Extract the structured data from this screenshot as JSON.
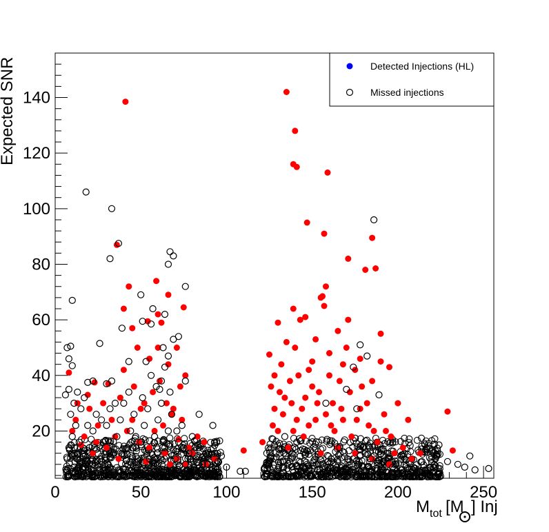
{
  "chart_data": {
    "type": "scatter",
    "title": "",
    "xlabel": "",
    "ylabel": "Expected SNR",
    "xlim": [
      0,
      256
    ],
    "ylim": [
      3,
      156
    ],
    "x_ticks": [
      0,
      50,
      100,
      150,
      200,
      250
    ],
    "y_ticks": [
      20,
      40,
      60,
      80,
      100,
      120,
      140
    ],
    "grid": false,
    "legend_placement": "top-right",
    "legend": [
      {
        "label": "Detected Injections (HL)",
        "marker": "filled-circle",
        "color": "#0000ff"
      },
      {
        "label": "Missed injections",
        "marker": "open-circle",
        "color": "#000000"
      }
    ],
    "series": [
      {
        "label_ref": "detected-red",
        "marker": "filled-circle",
        "color": "#ff0000",
        "points": [
          [
            41,
            138.5
          ],
          [
            135,
            142
          ],
          [
            140,
            128
          ],
          [
            139,
            116
          ],
          [
            141,
            115
          ],
          [
            159,
            113
          ],
          [
            147,
            95
          ],
          [
            157,
            91
          ],
          [
            36,
            87
          ],
          [
            185,
            89.5
          ],
          [
            187,
            78.5
          ],
          [
            171,
            82
          ],
          [
            43,
            72
          ],
          [
            59,
            74
          ],
          [
            158,
            72
          ],
          [
            156,
            68.5
          ],
          [
            155,
            68
          ],
          [
            40,
            64
          ],
          [
            75,
            64.5
          ],
          [
            60,
            62
          ],
          [
            66,
            69
          ],
          [
            181,
            78
          ],
          [
            139,
            64
          ],
          [
            143,
            60
          ],
          [
            130,
            59
          ],
          [
            157,
            65
          ],
          [
            146,
            61
          ],
          [
            165,
            56
          ],
          [
            171,
            60
          ],
          [
            190,
            55
          ],
          [
            62,
            59
          ],
          [
            54,
            59.5
          ],
          [
            45,
            57
          ],
          [
            60,
            50
          ],
          [
            71,
            50
          ],
          [
            66,
            44
          ],
          [
            55,
            46
          ],
          [
            40,
            42
          ],
          [
            48,
            50
          ],
          [
            31,
            37
          ],
          [
            23,
            37.5
          ],
          [
            8,
            41
          ],
          [
            19,
            33
          ],
          [
            76,
            40
          ],
          [
            73,
            36
          ],
          [
            170,
            50
          ],
          [
            178,
            46
          ],
          [
            190,
            45
          ],
          [
            195,
            43
          ],
          [
            125,
            47.5
          ],
          [
            132,
            44
          ],
          [
            128,
            40
          ],
          [
            137,
            38
          ],
          [
            142,
            40
          ],
          [
            150,
            36
          ],
          [
            160,
            40
          ],
          [
            168,
            44
          ],
          [
            185,
            38
          ],
          [
            175,
            42
          ],
          [
            200,
            30
          ],
          [
            206,
            24
          ],
          [
            229,
            27
          ],
          [
            232,
            13
          ],
          [
            121,
            16
          ],
          [
            110,
            13
          ],
          [
            83,
            18
          ],
          [
            87,
            16
          ],
          [
            10,
            20
          ],
          [
            25,
            22
          ],
          [
            35,
            18
          ],
          [
            45,
            24
          ],
          [
            50,
            28
          ],
          [
            58,
            20
          ],
          [
            63,
            22
          ],
          [
            68,
            26
          ],
          [
            72,
            17
          ],
          [
            78,
            14
          ],
          [
            15,
            15
          ],
          [
            30,
            14
          ],
          [
            128,
            28
          ],
          [
            134,
            32
          ],
          [
            141,
            24
          ],
          [
            148,
            22
          ],
          [
            153,
            30
          ],
          [
            158,
            26
          ],
          [
            163,
            20
          ],
          [
            168,
            24
          ],
          [
            173,
            18
          ],
          [
            178,
            28
          ],
          [
            183,
            22
          ],
          [
            188,
            16
          ],
          [
            193,
            20
          ],
          [
            198,
            12
          ],
          [
            203,
            14
          ],
          [
            208,
            10
          ],
          [
            213,
            12
          ],
          [
            130,
            20
          ],
          [
            136,
            14
          ],
          [
            145,
            18
          ],
          [
            155,
            12
          ],
          [
            165,
            14
          ],
          [
            175,
            12
          ],
          [
            185,
            10
          ],
          [
            195,
            8
          ],
          [
            126,
            36
          ],
          [
            131,
            34
          ],
          [
            138,
            30
          ],
          [
            144,
            28
          ],
          [
            152,
            24
          ],
          [
            162,
            30
          ],
          [
            172,
            34
          ],
          [
            182,
            30
          ],
          [
            192,
            26
          ],
          [
            127,
            22
          ],
          [
            133,
            26
          ],
          [
            139,
            20
          ],
          [
            146,
            32
          ],
          [
            154,
            34
          ],
          [
            161,
            22
          ],
          [
            167,
            28
          ],
          [
            176,
            24
          ],
          [
            186,
            20
          ],
          [
            196,
            18
          ],
          [
            140,
            50
          ],
          [
            150,
            45
          ],
          [
            160,
            48
          ],
          [
            166,
            38
          ],
          [
            179,
            36
          ],
          [
            135,
            52
          ],
          [
            152,
            53
          ],
          [
            148,
            42
          ],
          [
            20,
            28
          ],
          [
            28,
            30
          ],
          [
            38,
            32
          ],
          [
            46,
            36
          ],
          [
            52,
            30
          ],
          [
            57,
            34
          ],
          [
            61,
            38
          ],
          [
            65,
            30
          ],
          [
            69,
            28
          ],
          [
            74,
            24
          ],
          [
            12,
            24
          ],
          [
            17,
            18
          ],
          [
            24,
            16
          ],
          [
            33,
            24
          ],
          [
            42,
            20
          ],
          [
            49,
            16
          ],
          [
            55,
            14
          ],
          [
            64,
            12
          ],
          [
            71,
            10
          ],
          [
            80,
            12
          ],
          [
            88,
            8
          ],
          [
            93,
            10
          ],
          [
            13,
            30
          ],
          [
            22,
            12
          ],
          [
            37,
            10
          ],
          [
            53,
            9
          ],
          [
            67,
            8
          ],
          [
            76,
            8
          ]
        ]
      },
      {
        "label_ref": "Missed injections",
        "marker": "open-circle",
        "color": "#000000",
        "points": [
          [
            18,
            106
          ],
          [
            33,
            100
          ],
          [
            37,
            87.5
          ],
          [
            32,
            82
          ],
          [
            67,
            84.5
          ],
          [
            69,
            83
          ],
          [
            66,
            80
          ],
          [
            186,
            96
          ],
          [
            76,
            72
          ],
          [
            10,
            67
          ],
          [
            50,
            69
          ],
          [
            57,
            64
          ],
          [
            64,
            62
          ],
          [
            51,
            59.5
          ],
          [
            56,
            58.5
          ],
          [
            39,
            57
          ],
          [
            72,
            54
          ],
          [
            69,
            53
          ],
          [
            26,
            51.5
          ],
          [
            7,
            50
          ],
          [
            9,
            50.5
          ],
          [
            8,
            46
          ],
          [
            10,
            43.5
          ],
          [
            63,
            50
          ],
          [
            53,
            45
          ],
          [
            43,
            45
          ],
          [
            66,
            47
          ],
          [
            64,
            43
          ],
          [
            178,
            51
          ],
          [
            182,
            47
          ],
          [
            174,
            43
          ],
          [
            33,
            38
          ],
          [
            22,
            38
          ],
          [
            19,
            37.5
          ],
          [
            30,
            37
          ],
          [
            8,
            35
          ],
          [
            13,
            34
          ],
          [
            17,
            32
          ],
          [
            6,
            33
          ],
          [
            11,
            30
          ],
          [
            56,
            40
          ],
          [
            62,
            38
          ],
          [
            76,
            38
          ],
          [
            61,
            35
          ],
          [
            189,
            33
          ],
          [
            158,
            30
          ],
          [
            170,
            35
          ],
          [
            176,
            28
          ],
          [
            224,
            15
          ],
          [
            242,
            11
          ],
          [
            229,
            9
          ],
          [
            235,
            8
          ],
          [
            239,
            7
          ],
          [
            245,
            6
          ],
          [
            253,
            6.5
          ],
          [
            221,
            7
          ],
          [
            216,
            6
          ],
          [
            212,
            5.5
          ],
          [
            111,
            5.5
          ],
          [
            108,
            5.5
          ],
          [
            100,
            7
          ],
          [
            95,
            9
          ],
          [
            93,
            12
          ],
          [
            97,
            11
          ],
          [
            89,
            8
          ],
          [
            92,
            22
          ],
          [
            84,
            26
          ],
          [
            122,
            6.5
          ],
          [
            124,
            8
          ],
          [
            126,
            10
          ],
          [
            131,
            12
          ],
          [
            137,
            9
          ],
          [
            143,
            11
          ],
          [
            149,
            13
          ],
          [
            155,
            8
          ],
          [
            161,
            10
          ],
          [
            166,
            14
          ],
          [
            172,
            9
          ],
          [
            178,
            11
          ],
          [
            183,
            7
          ],
          [
            188,
            9
          ],
          [
            194,
            12
          ],
          [
            199,
            8
          ],
          [
            204,
            10
          ],
          [
            209,
            7
          ],
          [
            214,
            9
          ],
          [
            219,
            6
          ],
          [
            128,
            15
          ],
          [
            134,
            18
          ],
          [
            141,
            16
          ],
          [
            147,
            8
          ],
          [
            153,
            6
          ],
          [
            159,
            7
          ],
          [
            165,
            9
          ],
          [
            171,
            6
          ],
          [
            177,
            8
          ],
          [
            184,
            10
          ],
          [
            190,
            6
          ],
          [
            197,
            7
          ],
          [
            202,
            6
          ],
          [
            7,
            10
          ],
          [
            8,
            14
          ],
          [
            10,
            18
          ],
          [
            12,
            22
          ],
          [
            14,
            16
          ],
          [
            16,
            12
          ],
          [
            18,
            8
          ],
          [
            20,
            14
          ],
          [
            22,
            20
          ],
          [
            24,
            26
          ],
          [
            26,
            10
          ],
          [
            28,
            16
          ],
          [
            30,
            22
          ],
          [
            32,
            28
          ],
          [
            34,
            12
          ],
          [
            36,
            18
          ],
          [
            38,
            24
          ],
          [
            40,
            30
          ],
          [
            42,
            14
          ],
          [
            44,
            20
          ],
          [
            46,
            26
          ],
          [
            48,
            10
          ],
          [
            50,
            16
          ],
          [
            52,
            22
          ],
          [
            54,
            28
          ],
          [
            56,
            12
          ],
          [
            58,
            18
          ],
          [
            60,
            24
          ],
          [
            62,
            30
          ],
          [
            64,
            14
          ],
          [
            66,
            20
          ],
          [
            68,
            26
          ],
          [
            70,
            10
          ],
          [
            72,
            16
          ],
          [
            74,
            22
          ],
          [
            76,
            8
          ],
          [
            78,
            12
          ],
          [
            80,
            18
          ],
          [
            82,
            10
          ],
          [
            84,
            14
          ],
          [
            86,
            8
          ],
          [
            88,
            12
          ],
          [
            90,
            6
          ],
          [
            9,
            26
          ],
          [
            11,
            12
          ],
          [
            15,
            28
          ],
          [
            19,
            22
          ],
          [
            23,
            14
          ],
          [
            27,
            24
          ],
          [
            31,
            8
          ],
          [
            35,
            30
          ],
          [
            39,
            12
          ],
          [
            43,
            34
          ],
          [
            47,
            18
          ],
          [
            51,
            32
          ],
          [
            55,
            10
          ],
          [
            59,
            36
          ],
          [
            63,
            16
          ],
          [
            67,
            34
          ],
          [
            71,
            20
          ],
          [
            75,
            14
          ],
          [
            79,
            10
          ],
          [
            7,
            6
          ],
          [
            13,
            6
          ],
          [
            21,
            6
          ],
          [
            29,
            6
          ],
          [
            37,
            6
          ],
          [
            45,
            6
          ],
          [
            53,
            6
          ],
          [
            61,
            6
          ],
          [
            69,
            6
          ],
          [
            77,
            6
          ],
          [
            85,
            6
          ]
        ]
      }
    ]
  }
}
